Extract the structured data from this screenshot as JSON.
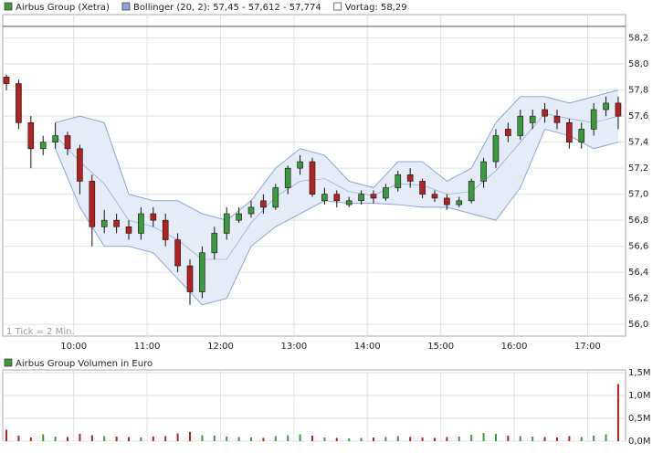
{
  "chart_data": {
    "type": "candlestick",
    "legend": [
      "Airbus Group (Xetra)",
      "Bollinger (20, 2): 57,45 - 57,612 - 57,774"
    ],
    "legend_colors": [
      "#3c9a3c",
      "#8ca5d6"
    ],
    "reference_line": {
      "value": 58.29,
      "label": "Vortag: 58,29"
    },
    "annotation": "1 Tick = 2 Min.",
    "up_color": "#3c9a3c",
    "down_color": "#b22222",
    "grid": true,
    "x": [
      545,
      555,
      565,
      575,
      585,
      595,
      605,
      615,
      625,
      635,
      645,
      655,
      665,
      675,
      685,
      695,
      705,
      715,
      725,
      735,
      745,
      755,
      765,
      775,
      785,
      795,
      805,
      815,
      825,
      835,
      845,
      855,
      865,
      875,
      885,
      895,
      905,
      915,
      925,
      935,
      945,
      955,
      965,
      975,
      985,
      995,
      1005,
      1015,
      1025,
      1035,
      1045
    ],
    "open": [
      57.9,
      57.85,
      57.55,
      57.35,
      57.4,
      57.45,
      57.35,
      57.1,
      56.75,
      56.8,
      56.75,
      56.7,
      56.85,
      56.8,
      56.65,
      56.45,
      56.25,
      56.55,
      56.7,
      56.8,
      56.85,
      56.95,
      56.9,
      57.05,
      57.2,
      57.25,
      56.95,
      57.0,
      56.92,
      56.95,
      57.0,
      56.97,
      57.05,
      57.15,
      57.1,
      57.0,
      56.97,
      56.92,
      56.95,
      57.1,
      57.25,
      57.5,
      57.45,
      57.55,
      57.65,
      57.6,
      57.55,
      57.4,
      57.5,
      57.65,
      57.7
    ],
    "high": [
      57.92,
      57.88,
      57.6,
      57.45,
      57.55,
      57.48,
      57.38,
      57.15,
      56.88,
      56.85,
      56.8,
      56.9,
      56.9,
      56.85,
      56.7,
      56.5,
      56.6,
      56.75,
      56.9,
      56.9,
      56.95,
      57.0,
      57.08,
      57.22,
      57.3,
      57.28,
      57.05,
      57.03,
      56.98,
      57.03,
      57.03,
      57.08,
      57.18,
      57.2,
      57.12,
      57.03,
      57.0,
      56.98,
      57.12,
      57.28,
      57.5,
      57.55,
      57.65,
      57.65,
      57.7,
      57.65,
      57.58,
      57.55,
      57.7,
      57.75,
      57.75
    ],
    "low": [
      57.8,
      57.5,
      57.2,
      57.3,
      57.35,
      57.3,
      57.0,
      56.6,
      56.7,
      56.7,
      56.65,
      56.65,
      56.75,
      56.6,
      56.4,
      56.15,
      56.2,
      56.5,
      56.65,
      56.78,
      56.82,
      56.85,
      56.88,
      57.0,
      57.15,
      56.98,
      56.92,
      56.9,
      56.9,
      56.92,
      56.93,
      56.95,
      57.02,
      57.05,
      56.97,
      56.94,
      56.88,
      56.9,
      56.93,
      57.05,
      57.2,
      57.4,
      57.42,
      57.5,
      57.55,
      57.5,
      57.35,
      57.35,
      57.45,
      57.6,
      57.5
    ],
    "close": [
      57.85,
      57.55,
      57.35,
      57.4,
      57.45,
      57.35,
      57.1,
      56.75,
      56.8,
      56.75,
      56.7,
      56.85,
      56.8,
      56.65,
      56.45,
      56.25,
      56.55,
      56.7,
      56.85,
      56.85,
      56.9,
      56.9,
      57.05,
      57.2,
      57.25,
      57.0,
      57.0,
      56.95,
      56.95,
      57.0,
      56.97,
      57.05,
      57.15,
      57.1,
      57.0,
      56.97,
      56.92,
      56.95,
      57.1,
      57.25,
      57.45,
      57.45,
      57.6,
      57.6,
      57.6,
      57.55,
      57.4,
      57.5,
      57.65,
      57.7,
      57.6
    ],
    "xlim": [
      542,
      1051
    ],
    "xticks": [
      {
        "value": 600,
        "label": "10:00"
      },
      {
        "value": 660,
        "label": "11:00"
      },
      {
        "value": 720,
        "label": "12:00"
      },
      {
        "value": 780,
        "label": "13:00"
      },
      {
        "value": 840,
        "label": "14:00"
      },
      {
        "value": 900,
        "label": "15:00"
      },
      {
        "value": 960,
        "label": "16:00"
      },
      {
        "value": 1020,
        "label": "17:00"
      }
    ],
    "ylim": [
      55.91,
      58.38
    ],
    "yticks": [
      {
        "value": 56.0,
        "label": "56,0"
      },
      {
        "value": 56.2,
        "label": "56,2"
      },
      {
        "value": 56.4,
        "label": "56,4"
      },
      {
        "value": 56.6,
        "label": "56,6"
      },
      {
        "value": 56.8,
        "label": "56,8"
      },
      {
        "value": 57.0,
        "label": "57,0"
      },
      {
        "value": 57.2,
        "label": "57,2"
      },
      {
        "value": 57.4,
        "label": "57,4"
      },
      {
        "value": 57.6,
        "label": "57,6"
      },
      {
        "value": 57.8,
        "label": "57,8"
      },
      {
        "value": 58.0,
        "label": "58,0"
      },
      {
        "value": 58.2,
        "label": "58,2"
      }
    ],
    "bollinger": {
      "color": "#8ca5d6",
      "fill": "#e5ecf8",
      "x": [
        585,
        605,
        625,
        645,
        665,
        685,
        705,
        725,
        745,
        765,
        785,
        805,
        825,
        845,
        865,
        885,
        905,
        925,
        945,
        965,
        985,
        1005,
        1025,
        1045
      ],
      "upper": [
        57.55,
        57.6,
        57.55,
        57.0,
        56.95,
        56.95,
        56.85,
        56.8,
        56.95,
        57.2,
        57.35,
        57.3,
        57.1,
        57.05,
        57.25,
        57.25,
        57.1,
        57.2,
        57.55,
        57.75,
        57.75,
        57.7,
        57.75,
        57.8
      ],
      "middle": [
        57.45,
        57.25,
        57.08,
        56.8,
        56.75,
        56.65,
        56.5,
        56.5,
        56.78,
        56.98,
        57.1,
        57.12,
        57.02,
        56.99,
        57.08,
        57.07,
        57.0,
        57.02,
        57.18,
        57.4,
        57.62,
        57.58,
        57.55,
        57.6
      ],
      "lower": [
        57.35,
        56.9,
        56.6,
        56.6,
        56.55,
        56.35,
        56.15,
        56.2,
        56.6,
        56.75,
        56.85,
        56.95,
        56.93,
        56.93,
        56.92,
        56.9,
        56.9,
        56.85,
        56.8,
        57.05,
        57.5,
        57.45,
        57.35,
        57.4
      ]
    },
    "volume": {
      "title": "Airbus Group Volumen in Euro",
      "color": "#3c9a3c",
      "values": [
        250000,
        120000,
        80000,
        150000,
        100000,
        90000,
        160000,
        130000,
        110000,
        100000,
        90000,
        80000,
        100000,
        110000,
        170000,
        200000,
        130000,
        120000,
        100000,
        90000,
        80000,
        70000,
        110000,
        130000,
        150000,
        120000,
        80000,
        70000,
        60000,
        70000,
        80000,
        90000,
        110000,
        90000,
        80000,
        70000,
        90000,
        100000,
        140000,
        180000,
        160000,
        120000,
        110000,
        100000,
        90000,
        80000,
        110000,
        90000,
        120000,
        150000,
        1250000
      ],
      "ylim": [
        0,
        1560000
      ],
      "yticks": [
        {
          "value": 0,
          "label": "0,0M"
        },
        {
          "value": 500000,
          "label": "0,5M"
        },
        {
          "value": 1000000,
          "label": "1,0M"
        },
        {
          "value": 1500000,
          "label": "1,5M"
        }
      ]
    }
  }
}
